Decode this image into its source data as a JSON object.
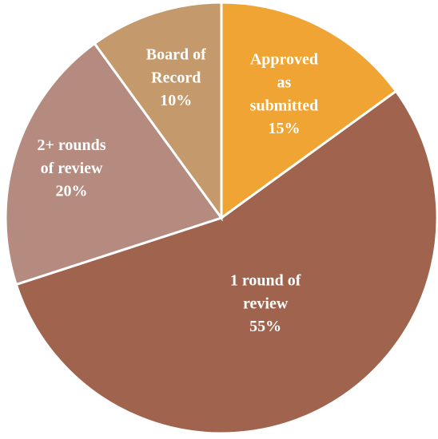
{
  "chart_data": {
    "type": "pie",
    "categories": [
      "Approved\nas\nsubmitted",
      "1 round of\nreview",
      "2+ rounds\nof review",
      "Board of\nRecord"
    ],
    "values": [
      15,
      55,
      20,
      10
    ],
    "value_labels": [
      "15%",
      "55%",
      "20%",
      "10%"
    ],
    "colors": [
      "#EFA433",
      "#A0634E",
      "#B58B80",
      "#C49A6C"
    ]
  }
}
